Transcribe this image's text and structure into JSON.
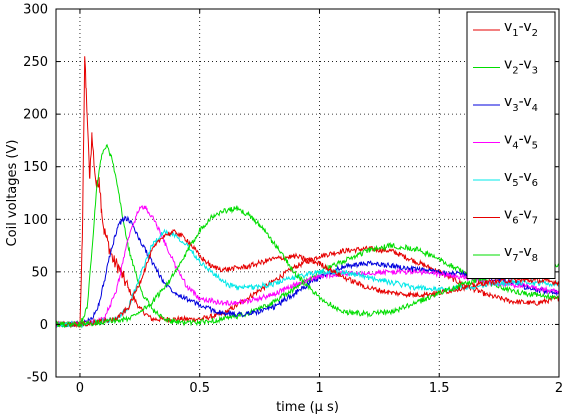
{
  "chart_data": {
    "type": "line",
    "xlabel": "time (µ s)",
    "ylabel": "Coil voltages (V)",
    "xlim": [
      -0.1,
      2.0
    ],
    "ylim": [
      -50,
      300
    ],
    "x_ticks": [
      0,
      0.5,
      1,
      1.5,
      2
    ],
    "x_tick_labels": [
      "0",
      "0.5",
      "1",
      "1.5",
      "2"
    ],
    "y_ticks": [
      -50,
      0,
      50,
      100,
      150,
      200,
      250,
      300
    ],
    "y_tick_labels": [
      "-50",
      "0",
      "50",
      "100",
      "150",
      "200",
      "250",
      "300"
    ],
    "grid": true,
    "legend_position": "top-right",
    "series": [
      {
        "name": "v1-v2",
        "v": "v",
        "a": "1",
        "b": "2",
        "color": "#e60000",
        "x": [
          -0.1,
          0.0,
          0.01,
          0.02,
          0.025,
          0.03,
          0.04,
          0.05,
          0.06,
          0.07,
          0.08,
          0.09,
          0.1,
          0.12,
          0.14,
          0.16,
          0.18,
          0.2,
          0.25,
          0.3,
          0.35,
          0.4,
          0.5,
          0.6,
          0.7,
          0.8,
          0.9,
          1.0,
          1.1,
          1.2,
          1.3,
          1.4,
          1.5,
          1.6,
          1.7,
          1.8,
          1.9,
          2.0
        ],
        "y": [
          0,
          0,
          80,
          255,
          225,
          200,
          140,
          180,
          150,
          130,
          140,
          110,
          90,
          75,
          60,
          55,
          45,
          35,
          15,
          5,
          5,
          5,
          5,
          10,
          25,
          40,
          55,
          65,
          70,
          72,
          70,
          60,
          50,
          38,
          28,
          22,
          20,
          25
        ]
      },
      {
        "name": "v2-v3",
        "v": "v",
        "a": "2",
        "b": "3",
        "color": "#00dd00",
        "x": [
          -0.1,
          0.0,
          0.03,
          0.05,
          0.07,
          0.09,
          0.11,
          0.13,
          0.15,
          0.18,
          0.2,
          0.23,
          0.26,
          0.3,
          0.35,
          0.4,
          0.5,
          0.6,
          0.7,
          0.8,
          0.9,
          1.0,
          1.1,
          1.2,
          1.3,
          1.4,
          1.5,
          1.6,
          1.7,
          1.8,
          1.9,
          2.0
        ],
        "y": [
          0,
          0,
          15,
          70,
          130,
          160,
          170,
          160,
          140,
          100,
          75,
          50,
          30,
          15,
          5,
          2,
          2,
          5,
          10,
          20,
          35,
          50,
          60,
          70,
          75,
          72,
          62,
          50,
          40,
          32,
          28,
          25
        ]
      },
      {
        "name": "v3-v4",
        "v": "v",
        "a": "3",
        "b": "4",
        "color": "#0000dd",
        "x": [
          -0.1,
          0.0,
          0.05,
          0.08,
          0.1,
          0.13,
          0.16,
          0.19,
          0.22,
          0.25,
          0.3,
          0.35,
          0.4,
          0.5,
          0.6,
          0.7,
          0.8,
          0.9,
          1.0,
          1.1,
          1.2,
          1.3,
          1.4,
          1.5,
          1.6,
          1.7,
          1.8,
          1.9,
          2.0
        ],
        "y": [
          0,
          0,
          5,
          20,
          40,
          70,
          95,
          102,
          95,
          80,
          60,
          40,
          30,
          18,
          10,
          10,
          15,
          30,
          45,
          55,
          58,
          56,
          52,
          50,
          48,
          45,
          40,
          33,
          30
        ]
      },
      {
        "name": "v4-v5",
        "v": "v",
        "a": "4",
        "b": "5",
        "color": "#ff00ff",
        "x": [
          -0.1,
          0.0,
          0.1,
          0.15,
          0.2,
          0.25,
          0.28,
          0.32,
          0.36,
          0.4,
          0.45,
          0.5,
          0.6,
          0.7,
          0.8,
          0.9,
          1.0,
          1.1,
          1.2,
          1.3,
          1.4,
          1.5,
          1.6,
          1.7,
          1.8,
          1.9,
          2.0
        ],
        "y": [
          0,
          0,
          5,
          30,
          80,
          112,
          110,
          95,
          75,
          55,
          35,
          25,
          20,
          22,
          28,
          38,
          46,
          48,
          49,
          50,
          50,
          48,
          45,
          40,
          38,
          35,
          30
        ]
      },
      {
        "name": "v5-v6",
        "v": "v",
        "a": "5",
        "b": "6",
        "color": "#00e8e8",
        "x": [
          -0.1,
          0.0,
          0.15,
          0.2,
          0.25,
          0.3,
          0.35,
          0.4,
          0.45,
          0.5,
          0.55,
          0.6,
          0.65,
          0.7,
          0.8,
          0.9,
          1.0,
          1.1,
          1.2,
          1.3,
          1.4,
          1.5,
          1.6,
          1.7,
          1.8,
          1.9,
          2.0
        ],
        "y": [
          0,
          0,
          5,
          15,
          45,
          75,
          88,
          85,
          75,
          60,
          50,
          40,
          35,
          35,
          38,
          45,
          50,
          50,
          45,
          40,
          35,
          33,
          35,
          38,
          40,
          40,
          38
        ]
      },
      {
        "name": "v6-v7",
        "v": "v",
        "a": "6",
        "b": "7",
        "color": "#e60000",
        "x": [
          -0.1,
          0.0,
          0.15,
          0.2,
          0.25,
          0.3,
          0.35,
          0.4,
          0.45,
          0.5,
          0.55,
          0.6,
          0.7,
          0.8,
          0.9,
          1.0,
          1.1,
          1.2,
          1.3,
          1.4,
          1.5,
          1.6,
          1.7,
          1.8,
          1.9,
          2.0
        ],
        "y": [
          0,
          0,
          5,
          15,
          40,
          70,
          85,
          88,
          80,
          65,
          55,
          52,
          55,
          62,
          65,
          58,
          45,
          35,
          30,
          28,
          30,
          35,
          40,
          42,
          42,
          40
        ]
      },
      {
        "name": "v7-v8",
        "v": "v",
        "a": "7",
        "b": "8",
        "color": "#00dd00",
        "x": [
          -0.1,
          0.0,
          0.2,
          0.3,
          0.4,
          0.45,
          0.5,
          0.55,
          0.6,
          0.65,
          0.7,
          0.75,
          0.8,
          0.85,
          0.9,
          1.0,
          1.1,
          1.2,
          1.3,
          1.4,
          1.5,
          1.6,
          1.7,
          1.8,
          1.9,
          2.0
        ],
        "y": [
          0,
          0,
          5,
          20,
          50,
          70,
          90,
          102,
          108,
          110,
          105,
          95,
          80,
          65,
          48,
          25,
          12,
          10,
          12,
          20,
          30,
          38,
          45,
          50,
          53,
          55
        ]
      }
    ]
  }
}
